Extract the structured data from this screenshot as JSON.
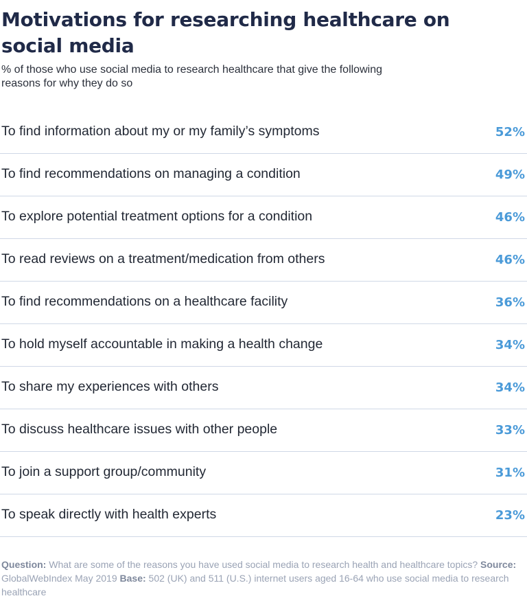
{
  "title": "Motivations for researching healthcare on social media",
  "subtitle": "% of those who use social media to research healthcare that give the following reasons for why they do so",
  "chart_data": {
    "type": "table",
    "title": "Motivations for researching healthcare on social media",
    "subtitle": "% of those who use social media to research healthcare that give the following reasons for why they do so",
    "unit": "%",
    "accent_color": "#4a9ad8",
    "rows": [
      {
        "label": "To find information about my or my family’s symptoms",
        "value": 52,
        "display": "52%"
      },
      {
        "label": "To find recommendations on managing a condition",
        "value": 49,
        "display": "49%"
      },
      {
        "label": "To explore potential treatment options for a condition",
        "value": 46,
        "display": "46%"
      },
      {
        "label": "To read reviews on a treatment/medication from others",
        "value": 46,
        "display": "46%"
      },
      {
        "label": "To find recommendations on a healthcare facility",
        "value": 36,
        "display": "36%"
      },
      {
        "label": "To hold myself accountable in making a health change",
        "value": 34,
        "display": "34%"
      },
      {
        "label": "To share my experiences with others",
        "value": 34,
        "display": "34%"
      },
      {
        "label": "To discuss healthcare issues with other people",
        "value": 33,
        "display": "33%"
      },
      {
        "label": "To join a support group/community",
        "value": 31,
        "display": "31%"
      },
      {
        "label": "To speak directly with health experts",
        "value": 23,
        "display": "23%"
      }
    ]
  },
  "footnote": {
    "question_label": "Question:",
    "question_text": " What are some of the reasons you have used social media to research health and healthcare topics? ",
    "source_label": "Source:",
    "source_text": " GlobalWebIndex May 2019 ",
    "base_label": "Base:",
    "base_text": " 502 (UK) and 511 (U.S.) internet users aged 16-64 who use social media to research healthcare"
  }
}
